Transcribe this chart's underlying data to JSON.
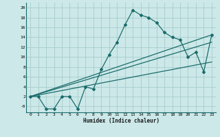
{
  "xlabel": "Humidex (Indice chaleur)",
  "bg_color": "#cce8e8",
  "grid_color": "#a8cccc",
  "line_color": "#1a6b6b",
  "xlim": [
    -0.5,
    23.5
  ],
  "ylim": [
    -1.2,
    21
  ],
  "xticks": [
    0,
    1,
    2,
    3,
    4,
    5,
    6,
    7,
    8,
    9,
    10,
    11,
    12,
    13,
    14,
    15,
    16,
    17,
    18,
    19,
    20,
    21,
    22,
    23
  ],
  "yticks": [
    0,
    2,
    4,
    6,
    8,
    10,
    12,
    14,
    16,
    18,
    20
  ],
  "yticklabels": [
    "-0",
    "2",
    "4",
    "6",
    "8",
    "10",
    "12",
    "14",
    "16",
    "18",
    "20"
  ],
  "series": [
    [
      0,
      2
    ],
    [
      1,
      2
    ],
    [
      2,
      -0.5
    ],
    [
      3,
      -0.5
    ],
    [
      4,
      2
    ],
    [
      5,
      2
    ],
    [
      6,
      -0.5
    ],
    [
      7,
      4
    ],
    [
      8,
      3.5
    ],
    [
      9,
      7.5
    ],
    [
      10,
      10.5
    ],
    [
      11,
      13
    ],
    [
      12,
      16.5
    ],
    [
      13,
      19.5
    ],
    [
      14,
      18.5
    ],
    [
      15,
      18
    ],
    [
      16,
      17
    ],
    [
      17,
      15
    ],
    [
      18,
      14
    ],
    [
      19,
      13.5
    ],
    [
      20,
      10
    ],
    [
      21,
      11
    ],
    [
      22,
      7
    ],
    [
      23,
      14.5
    ]
  ],
  "line1": [
    [
      0,
      2
    ],
    [
      23,
      13
    ]
  ],
  "line2": [
    [
      0,
      2
    ],
    [
      23,
      9
    ]
  ],
  "line3": [
    [
      0,
      2
    ],
    [
      23,
      14.5
    ]
  ]
}
